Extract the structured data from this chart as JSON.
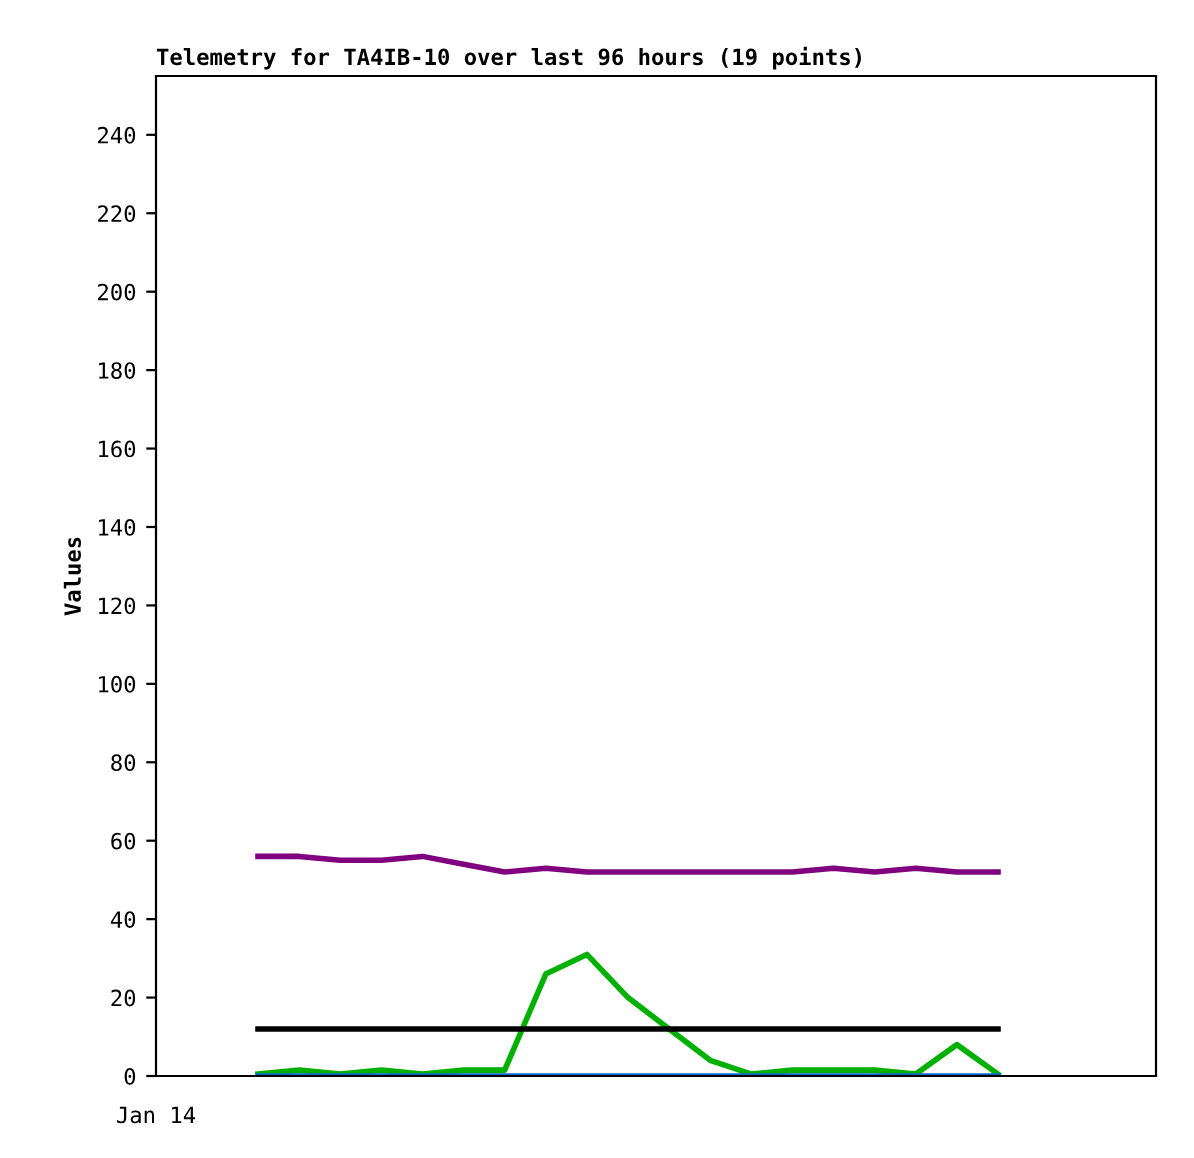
{
  "chart_data": {
    "type": "line",
    "title": "Telemetry for TA4IB-10 over last 96 hours (19 points)",
    "ylabel": "Values",
    "categories": [
      null,
      null,
      null,
      null,
      null,
      null,
      null,
      null,
      null,
      null,
      null,
      null,
      null,
      null,
      null,
      null,
      null,
      null,
      null
    ],
    "annotations": [
      "Jan 14"
    ],
    "series": [
      {
        "color": "#800080",
        "values": [
          56,
          56,
          55,
          55,
          56,
          54,
          52,
          53,
          52,
          52,
          52,
          52,
          52,
          52,
          53,
          52,
          53,
          52,
          52
        ]
      },
      {
        "color": "#00b000",
        "values": [
          0.5,
          1.5,
          0.5,
          1.5,
          0.5,
          1.5,
          1.5,
          26,
          31,
          20,
          12,
          4,
          0.5,
          1.5,
          1.5,
          1.5,
          0.5,
          8,
          0.5
        ]
      },
      {
        "color": "#000000",
        "values": [
          12,
          12,
          12,
          12,
          12,
          12,
          12,
          12,
          12,
          12,
          12,
          12,
          12,
          12,
          12,
          12,
          12,
          12,
          12
        ]
      },
      {
        "color": "#0066cc",
        "values": [
          0,
          0,
          0,
          0,
          0,
          0,
          0,
          0,
          0,
          0,
          0,
          0,
          0,
          0,
          0,
          0,
          0,
          0,
          0
        ]
      }
    ],
    "ylim": [
      0,
      255
    ],
    "yticks": [
      0,
      20,
      40,
      60,
      80,
      100,
      120,
      140,
      160,
      180,
      200,
      220,
      240
    ],
    "grid": false,
    "legend": false,
    "marker": "none",
    "line_style": "solid"
  }
}
